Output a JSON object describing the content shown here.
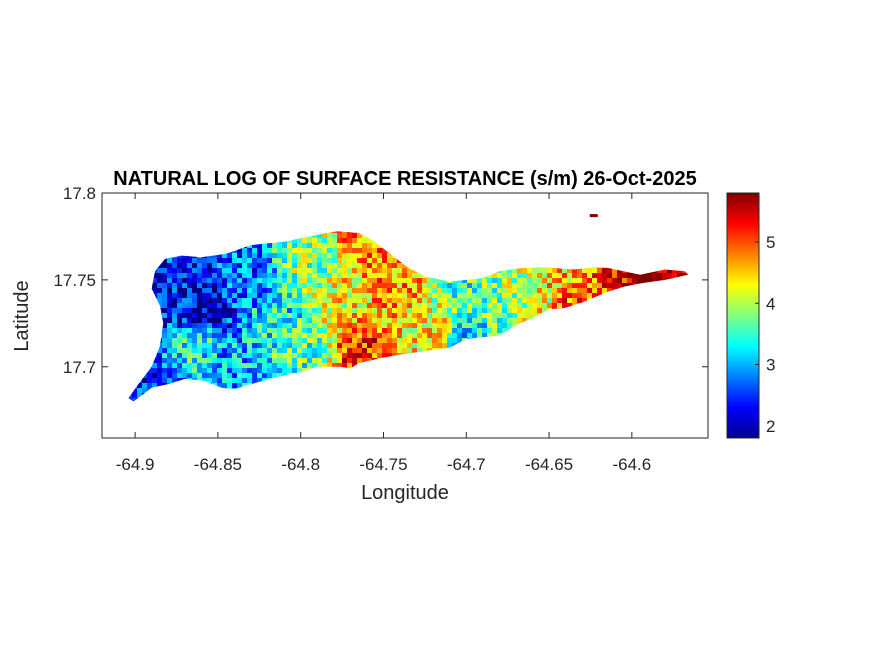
{
  "chart_data": {
    "type": "heatmap",
    "title": "NATURAL LOG OF SURFACE RESISTANCE (s/m) 26-Oct-2025",
    "xlabel": "Longitude",
    "ylabel": "Latitude",
    "xlim": [
      -64.92,
      -64.554
    ],
    "ylim": [
      17.659,
      17.8
    ],
    "xticks": [
      -64.9,
      -64.85,
      -64.8,
      -64.75,
      -64.7,
      -64.65,
      -64.6
    ],
    "xtick_labels": [
      "-64.9",
      "-64.85",
      "-64.8",
      "-64.75",
      "-64.7",
      "-64.65",
      "-64.6"
    ],
    "yticks": [
      17.7,
      17.75,
      17.8
    ],
    "ytick_labels": [
      "17.7",
      "17.75",
      "17.8"
    ],
    "colorbar": {
      "colormap": "jet",
      "clim": [
        1.8,
        5.8
      ],
      "ticks": [
        2,
        3,
        4,
        5
      ],
      "tick_labels": [
        "2",
        "3",
        "4",
        "5"
      ]
    },
    "grid": false,
    "island_outline": [
      [
        -64.901,
        17.68
      ],
      [
        -64.89,
        17.688
      ],
      [
        -64.88,
        17.69
      ],
      [
        -64.87,
        17.693
      ],
      [
        -64.858,
        17.692
      ],
      [
        -64.848,
        17.688
      ],
      [
        -64.84,
        17.687
      ],
      [
        -64.83,
        17.69
      ],
      [
        -64.815,
        17.694
      ],
      [
        -64.8,
        17.697
      ],
      [
        -64.79,
        17.7
      ],
      [
        -64.776,
        17.7
      ],
      [
        -64.77,
        17.699
      ],
      [
        -64.765,
        17.702
      ],
      [
        -64.752,
        17.705
      ],
      [
        -64.74,
        17.707
      ],
      [
        -64.725,
        17.709
      ],
      [
        -64.71,
        17.711
      ],
      [
        -64.7,
        17.716
      ],
      [
        -64.69,
        17.717
      ],
      [
        -64.68,
        17.718
      ],
      [
        -64.67,
        17.724
      ],
      [
        -64.66,
        17.728
      ],
      [
        -64.65,
        17.733
      ],
      [
        -64.64,
        17.734
      ],
      [
        -64.63,
        17.737
      ],
      [
        -64.615,
        17.743
      ],
      [
        -64.605,
        17.746
      ],
      [
        -64.595,
        17.748
      ],
      [
        -64.58,
        17.75
      ],
      [
        -64.566,
        17.753
      ],
      [
        -64.568,
        17.755
      ],
      [
        -64.58,
        17.756
      ],
      [
        -64.595,
        17.753
      ],
      [
        -64.605,
        17.755
      ],
      [
        -64.615,
        17.757
      ],
      [
        -64.625,
        17.757
      ],
      [
        -64.635,
        17.756
      ],
      [
        -64.65,
        17.757
      ],
      [
        -64.665,
        17.757
      ],
      [
        -64.68,
        17.755
      ],
      [
        -64.69,
        17.751
      ],
      [
        -64.7,
        17.75
      ],
      [
        -64.71,
        17.749
      ],
      [
        -64.725,
        17.752
      ],
      [
        -64.735,
        17.757
      ],
      [
        -64.742,
        17.762
      ],
      [
        -64.75,
        17.768
      ],
      [
        -64.757,
        17.773
      ],
      [
        -64.765,
        17.777
      ],
      [
        -64.778,
        17.778
      ],
      [
        -64.79,
        17.776
      ],
      [
        -64.8,
        17.774
      ],
      [
        -64.81,
        17.772
      ],
      [
        -64.82,
        17.771
      ],
      [
        -64.83,
        17.77
      ],
      [
        -64.845,
        17.765
      ],
      [
        -64.86,
        17.763
      ],
      [
        -64.872,
        17.764
      ],
      [
        -64.882,
        17.762
      ],
      [
        -64.888,
        17.755
      ],
      [
        -64.89,
        17.745
      ],
      [
        -64.885,
        17.735
      ],
      [
        -64.883,
        17.725
      ],
      [
        -64.885,
        17.712
      ],
      [
        -64.89,
        17.7
      ],
      [
        -64.898,
        17.69
      ],
      [
        -64.904,
        17.682
      ]
    ],
    "value_regions": [
      {
        "lon": -64.89,
        "lat": 17.688,
        "value": 2.4
      },
      {
        "lon": -64.875,
        "lat": 17.74,
        "value": 2.3
      },
      {
        "lon": -64.86,
        "lat": 17.735,
        "value": 2.0
      },
      {
        "lon": -64.865,
        "lat": 17.715,
        "value": 3.4
      },
      {
        "lon": -64.845,
        "lat": 17.7,
        "value": 3.0
      },
      {
        "lon": -64.835,
        "lat": 17.75,
        "value": 2.7
      },
      {
        "lon": -64.815,
        "lat": 17.73,
        "value": 3.3
      },
      {
        "lon": -64.8,
        "lat": 17.712,
        "value": 3.6
      },
      {
        "lon": -64.795,
        "lat": 17.76,
        "value": 3.8
      },
      {
        "lon": -64.775,
        "lat": 17.74,
        "value": 4.3
      },
      {
        "lon": -64.76,
        "lat": 17.77,
        "value": 4.8
      },
      {
        "lon": -64.75,
        "lat": 17.75,
        "value": 4.7
      },
      {
        "lon": -64.765,
        "lat": 17.712,
        "value": 5.1
      },
      {
        "lon": -64.735,
        "lat": 17.752,
        "value": 4.6
      },
      {
        "lon": -64.72,
        "lat": 17.725,
        "value": 4.3
      },
      {
        "lon": -64.705,
        "lat": 17.745,
        "value": 3.5
      },
      {
        "lon": -64.7,
        "lat": 17.722,
        "value": 3.2
      },
      {
        "lon": -64.685,
        "lat": 17.738,
        "value": 3.7
      },
      {
        "lon": -64.67,
        "lat": 17.745,
        "value": 3.9
      },
      {
        "lon": -64.655,
        "lat": 17.742,
        "value": 4.2
      },
      {
        "lon": -64.645,
        "lat": 17.75,
        "value": 4.5
      },
      {
        "lon": -64.64,
        "lat": 17.74,
        "value": 4.9
      },
      {
        "lon": -64.625,
        "lat": 17.748,
        "value": 4.8
      },
      {
        "lon": -64.612,
        "lat": 17.75,
        "value": 5.3
      },
      {
        "lon": -64.595,
        "lat": 17.751,
        "value": 5.7
      },
      {
        "lon": -64.578,
        "lat": 17.753,
        "value": 5.8
      }
    ],
    "islet": {
      "lon": -64.623,
      "lat": 17.787,
      "value": 5.8
    }
  }
}
